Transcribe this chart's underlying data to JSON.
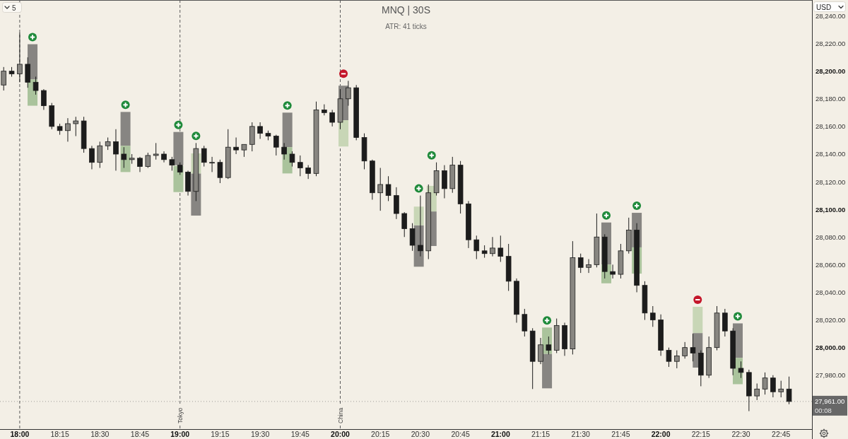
{
  "chart_data": {
    "type": "candlestick",
    "title": "MNQ | 30S",
    "subtitle": "ATR: 41 ticks",
    "ylabel": "USD",
    "annotations": [
      "5",
      "00:08"
    ],
    "color": "#1c1c1c",
    "xlim": [
      17.877,
      22.943
    ],
    "ylim": [
      27941,
      28251.5
    ],
    "xticks": [
      {
        "value": 18,
        "label": "18:00"
      },
      {
        "value": 18.25,
        "label": "18:15"
      },
      {
        "value": 18.5,
        "label": "18:30"
      },
      {
        "value": 18.75,
        "label": "18:45"
      },
      {
        "value": 19,
        "label": "19:00"
      },
      {
        "value": 19.25,
        "label": "19:15"
      },
      {
        "value": 19.5,
        "label": "19:30"
      },
      {
        "value": 19.75,
        "label": "19:45"
      },
      {
        "value": 20,
        "label": "20:00"
      },
      {
        "value": 20.25,
        "label": "20:15"
      },
      {
        "value": 20.5,
        "label": "20:30"
      },
      {
        "value": 20.75,
        "label": "20:45"
      },
      {
        "value": 21,
        "label": "21:00"
      },
      {
        "value": 21.25,
        "label": "21:15"
      },
      {
        "value": 21.5,
        "label": "21:30"
      },
      {
        "value": 21.75,
        "label": "21:45"
      },
      {
        "value": 22,
        "label": "22:00"
      },
      {
        "value": 22.25,
        "label": "22:15"
      },
      {
        "value": 22.5,
        "label": "22:30"
      },
      {
        "value": 22.75,
        "label": "22:45"
      }
    ],
    "yticks": [
      {
        "value": 27980,
        "label": "27,980.00"
      },
      {
        "value": 28000,
        "label": "28,000.00"
      },
      {
        "value": 28020,
        "label": "28,020.00"
      },
      {
        "value": 28040,
        "label": "28,040.00"
      },
      {
        "value": 28060,
        "label": "28,060.00"
      },
      {
        "value": 28080,
        "label": "28,080.00"
      },
      {
        "value": 28100,
        "label": "28,100.00"
      },
      {
        "value": 28120,
        "label": "28,120.00"
      },
      {
        "value": 28140,
        "label": "28,140.00"
      },
      {
        "value": 28160,
        "label": "28,160.00"
      },
      {
        "value": 28180,
        "label": "28,180.00"
      },
      {
        "value": 28200,
        "label": "28,200.00"
      },
      {
        "value": 28220,
        "label": "28,220.00"
      },
      {
        "value": 28240,
        "label": "28,240.00"
      }
    ],
    "x": [
      17.9,
      17.95,
      18,
      18.05,
      18.1,
      18.15,
      18.2,
      18.25,
      18.3,
      18.35,
      18.4,
      18.45,
      18.5,
      18.55,
      18.6,
      18.65,
      18.7,
      18.75,
      18.8,
      18.85,
      18.9,
      18.95,
      19,
      19.05,
      19.1,
      19.15,
      19.2,
      19.25,
      19.3,
      19.35,
      19.4,
      19.45,
      19.5,
      19.55,
      19.6,
      19.65,
      19.7,
      19.75,
      19.8,
      19.85,
      19.9,
      19.95,
      20,
      20.05,
      20.1,
      20.15,
      20.2,
      20.25,
      20.3,
      20.35,
      20.4,
      20.45,
      20.5,
      20.55,
      20.6,
      20.65,
      20.7,
      20.75,
      20.8,
      20.85,
      20.9,
      20.95,
      21,
      21.05,
      21.1,
      21.15,
      21.2,
      21.25,
      21.3,
      21.35,
      21.4,
      21.45,
      21.5,
      21.55,
      21.6,
      21.65,
      21.7,
      21.75,
      21.8,
      21.85,
      21.9,
      21.95,
      22,
      22.05,
      22.1,
      22.15,
      22.2,
      22.25,
      22.3,
      22.35,
      22.4,
      22.45,
      22.5,
      22.55,
      22.6,
      22.65,
      22.7,
      22.75,
      22.8
    ],
    "ohlc": [
      [
        28190,
        28203,
        28186,
        28200
      ],
      [
        28200,
        28203,
        28196,
        28198
      ],
      [
        28198,
        28228,
        28192,
        28205
      ],
      [
        28205,
        28210,
        28188,
        28192
      ],
      [
        28192,
        28196,
        28183,
        28186
      ],
      [
        28186,
        28187,
        28172,
        28175
      ],
      [
        28175,
        28177,
        28158,
        28160
      ],
      [
        28160,
        28162,
        28154,
        28157
      ],
      [
        28157,
        28166,
        28149,
        28162
      ],
      [
        28162,
        28167,
        28153,
        28164
      ],
      [
        28164,
        28167,
        28141,
        28144
      ],
      [
        28144,
        28146,
        28129,
        28134
      ],
      [
        28134,
        28149,
        28130,
        28146
      ],
      [
        28146,
        28152,
        28143,
        28149
      ],
      [
        28149,
        28158,
        28128,
        28140
      ],
      [
        28140,
        28145,
        28130,
        28136
      ],
      [
        28136,
        28140,
        28133,
        28137
      ],
      [
        28137,
        28138,
        28127,
        28131
      ],
      [
        28131,
        28141,
        28130,
        28139
      ],
      [
        28139,
        28148,
        28136,
        28140
      ],
      [
        28140,
        28142,
        28134,
        28136
      ],
      [
        28136,
        28138,
        28128,
        28132
      ],
      [
        28132,
        28134,
        28125,
        28127
      ],
      [
        28127,
        28128,
        28110,
        28113
      ],
      [
        28113,
        28148,
        28106,
        28144
      ],
      [
        28144,
        28146,
        28131,
        28134
      ],
      [
        28134,
        28138,
        28127,
        28134
      ],
      [
        28134,
        28136,
        28119,
        28123
      ],
      [
        28123,
        28158,
        28122,
        28145
      ],
      [
        28145,
        28152,
        28140,
        28143
      ],
      [
        28143,
        28147,
        28138,
        28147
      ],
      [
        28147,
        28163,
        28142,
        28160
      ],
      [
        28160,
        28163,
        28151,
        28155
      ],
      [
        28155,
        28157,
        28150,
        28153
      ],
      [
        28153,
        28154,
        28139,
        28145
      ],
      [
        28145,
        28148,
        28136,
        28140
      ],
      [
        28140,
        28142,
        28131,
        28134
      ],
      [
        28134,
        28139,
        28124,
        28130
      ],
      [
        28130,
        28132,
        28122,
        28126
      ],
      [
        28126,
        28178,
        28124,
        28172
      ],
      [
        28172,
        28176,
        28168,
        28170
      ],
      [
        28170,
        28172,
        28160,
        28163
      ],
      [
        28163,
        28187,
        28158,
        28180
      ],
      [
        28180,
        28193,
        28175,
        28188
      ],
      [
        28188,
        28190,
        28150,
        28152
      ],
      [
        28152,
        28155,
        28129,
        28135
      ],
      [
        28135,
        28136,
        28107,
        28112
      ],
      [
        28112,
        28130,
        28099,
        28118
      ],
      [
        28118,
        28124,
        28106,
        28110
      ],
      [
        28110,
        28116,
        28093,
        28097
      ],
      [
        28097,
        28098,
        28080,
        28086
      ],
      [
        28086,
        28090,
        28070,
        28074
      ],
      [
        28074,
        28110,
        28066,
        28070
      ],
      [
        28070,
        28118,
        28064,
        28112
      ],
      [
        28112,
        28134,
        28110,
        28128
      ],
      [
        28128,
        28132,
        28108,
        28115
      ],
      [
        28115,
        28138,
        28112,
        28132
      ],
      [
        28132,
        28135,
        28097,
        28104
      ],
      [
        28104,
        28106,
        28072,
        28078
      ],
      [
        28078,
        28081,
        28064,
        28070
      ],
      [
        28070,
        28074,
        28065,
        28068
      ],
      [
        28068,
        28080,
        28066,
        28072
      ],
      [
        28072,
        28081,
        28062,
        28066
      ],
      [
        28066,
        28075,
        28041,
        28048
      ],
      [
        28048,
        28050,
        28018,
        28024
      ],
      [
        28024,
        28028,
        28008,
        28012
      ],
      [
        28012,
        28014,
        27970,
        27990
      ],
      [
        27990,
        28007,
        27988,
        28002
      ],
      [
        28002,
        28008,
        27995,
        27998
      ],
      [
        27998,
        28021,
        27996,
        28016
      ],
      [
        28016,
        28018,
        27994,
        27999
      ],
      [
        27999,
        28077,
        27995,
        28065
      ],
      [
        28065,
        28068,
        28054,
        28058
      ],
      [
        28058,
        28064,
        28054,
        28060
      ],
      [
        28060,
        28097,
        28058,
        28080
      ],
      [
        28080,
        28082,
        28050,
        28055
      ],
      [
        28055,
        28060,
        28050,
        28053
      ],
      [
        28053,
        28075,
        28050,
        28070
      ],
      [
        28070,
        28094,
        28068,
        28085
      ],
      [
        28085,
        28090,
        28040,
        28045
      ],
      [
        28045,
        28048,
        28020,
        28025
      ],
      [
        28025,
        28030,
        28015,
        28020
      ],
      [
        28020,
        28024,
        27994,
        27998
      ],
      [
        27998,
        28000,
        27986,
        27990
      ],
      [
        27990,
        27998,
        27985,
        27994
      ],
      [
        27994,
        28004,
        27992,
        28000
      ],
      [
        28000,
        28010,
        27990,
        27996
      ],
      [
        27996,
        27998,
        27972,
        27980
      ],
      [
        27980,
        28008,
        27978,
        28000
      ],
      [
        28000,
        28030,
        27998,
        28025
      ],
      [
        28025,
        28028,
        28008,
        28012
      ],
      [
        28012,
        28014,
        27980,
        27985
      ],
      [
        27985,
        27990,
        27978,
        27982
      ],
      [
        27982,
        27984,
        27954,
        27965
      ],
      [
        27965,
        27974,
        27962,
        27970
      ],
      [
        27970,
        27982,
        27966,
        27978
      ],
      [
        27978,
        27980,
        27964,
        27968
      ],
      [
        27968,
        27976,
        27964,
        27970
      ],
      [
        27970,
        27979,
        27959,
        27961
      ]
    ],
    "series": [
      {
        "type": "bar",
        "color": "#878582",
        "x": [
          18.08,
          18.66,
          18.99,
          19.1,
          19.67,
          20.02,
          20.49,
          20.57,
          21.29,
          21.66,
          21.85,
          22.23,
          22.48
        ],
        "base": [
          28194,
          28146,
          28132,
          28095.5,
          28145,
          28164.5,
          28058.5,
          28073.5,
          27970.5,
          28060,
          28072.5,
          27985.5,
          27992.5
        ],
        "values": [
          25.5,
          24.5,
          24,
          30.5,
          25,
          25,
          30,
          25,
          25,
          30.5,
          25,
          25,
          25
        ]
      },
      {
        "type": "bar",
        "colors": [
          "#aac39c",
          "#aac39c",
          "#aac39c",
          "#c8d6b6",
          "#aac39c",
          "#c8d6b6",
          "#c8d6b6",
          "#c8d6b6",
          "#aac39c",
          "#aac39c",
          "#aac39c",
          "#c8d6b6",
          "#aac39c"
        ],
        "x": [
          18.08,
          18.66,
          18.99,
          19.1,
          19.67,
          20.02,
          20.49,
          20.57,
          21.29,
          21.66,
          21.85,
          22.23,
          22.48
        ],
        "base": [
          28175,
          28127,
          28112.5,
          28126,
          28126,
          28145.5,
          28088.5,
          28098.5,
          27995.5,
          28046.5,
          28053.5,
          28010.5,
          27973.5
        ],
        "values": [
          19,
          19,
          19,
          14.5,
          19,
          19,
          13.5,
          18.5,
          19,
          13.5,
          19,
          19,
          19
        ]
      }
    ],
    "ref_lines": [
      {
        "axis": "x",
        "value": 18,
        "line_style": "dashed",
        "color": "#5a5a5a"
      },
      {
        "axis": "x",
        "value": 19,
        "label": "Tokyo",
        "line_style": "dashed",
        "color": "#5a5a5a"
      },
      {
        "axis": "x",
        "value": 20,
        "label": "China",
        "line_style": "dashed",
        "color": "#5a5a5a"
      },
      {
        "axis": "y",
        "value": 27961,
        "label": "27,961.00",
        "line_style": "dotted",
        "color": "#676767"
      }
    ]
  }
}
